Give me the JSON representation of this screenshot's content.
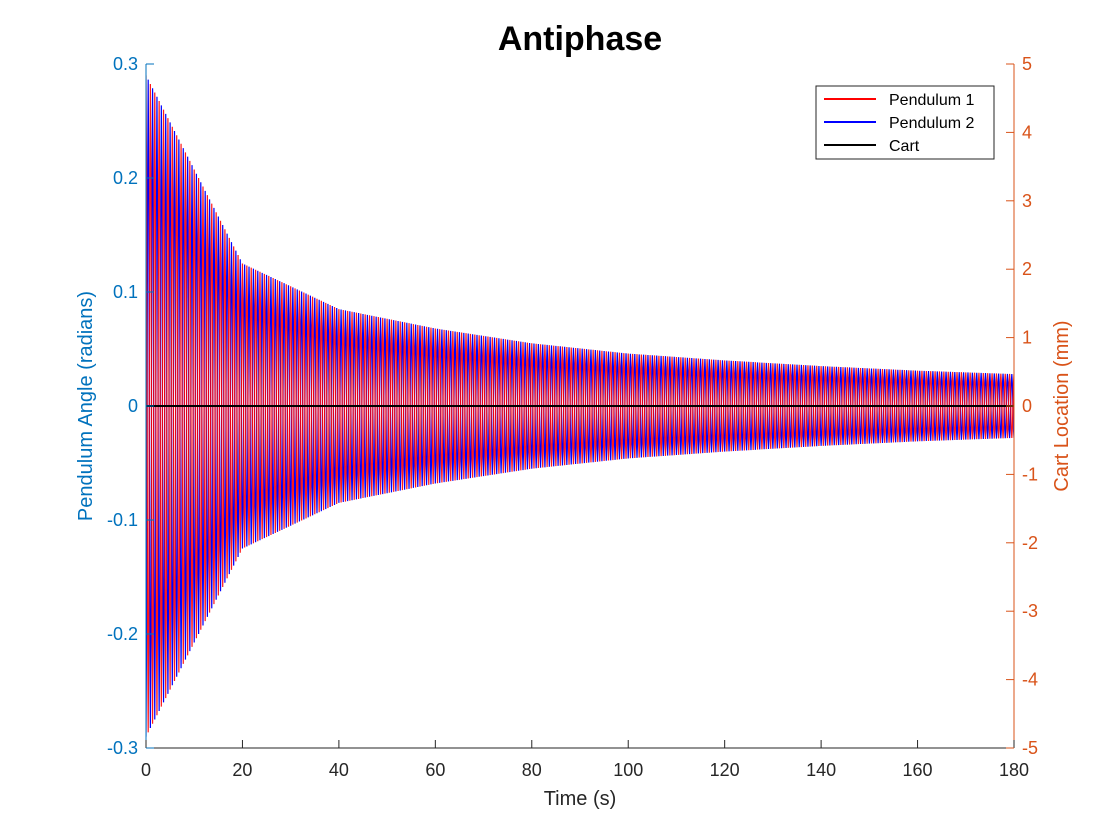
{
  "chart_data": {
    "type": "line",
    "title": "Antiphase",
    "xlabel": "Time (s)",
    "ylabel_left": "Pendulum Angle (radians)",
    "ylabel_right": "Cart Location (mm)",
    "xlim": [
      0,
      180
    ],
    "ylim_left": [
      -0.3,
      0.3
    ],
    "ylim_right": [
      -5,
      5
    ],
    "x_ticks": [
      0,
      20,
      40,
      60,
      80,
      100,
      120,
      140,
      160,
      180
    ],
    "y_left_ticks": [
      -0.3,
      -0.2,
      -0.1,
      0,
      0.1,
      0.2,
      0.3
    ],
    "y_right_ticks": [
      -5,
      -4,
      -3,
      -2,
      -1,
      0,
      1,
      2,
      3,
      4,
      5
    ],
    "grid": false,
    "legend_position": "top-right",
    "colors": {
      "left_axis": "#0072BD",
      "right_axis": "#D95319",
      "pendulum1": "#FF0000",
      "pendulum2": "#0000FF",
      "cart": "#000000"
    },
    "series": [
      {
        "name": "Pendulum 1",
        "axis": "left",
        "color": "#FF0000",
        "shape": "damped oscillation, antiphase with Pendulum 2",
        "envelope": [
          {
            "t": 0,
            "a": 0.29
          },
          {
            "t": 20,
            "a": 0.125
          },
          {
            "t": 40,
            "a": 0.085
          },
          {
            "t": 60,
            "a": 0.068
          },
          {
            "t": 80,
            "a": 0.055
          },
          {
            "t": 100,
            "a": 0.046
          },
          {
            "t": 120,
            "a": 0.04
          },
          {
            "t": 140,
            "a": 0.035
          },
          {
            "t": 160,
            "a": 0.031
          },
          {
            "t": 180,
            "a": 0.028
          }
        ]
      },
      {
        "name": "Pendulum 2",
        "axis": "left",
        "color": "#0000FF",
        "shape": "damped oscillation, antiphase with Pendulum 1",
        "envelope": [
          {
            "t": 0,
            "a": 0.29
          },
          {
            "t": 20,
            "a": 0.125
          },
          {
            "t": 40,
            "a": 0.085
          },
          {
            "t": 60,
            "a": 0.068
          },
          {
            "t": 80,
            "a": 0.055
          },
          {
            "t": 100,
            "a": 0.046
          },
          {
            "t": 120,
            "a": 0.04
          },
          {
            "t": 140,
            "a": 0.035
          },
          {
            "t": 160,
            "a": 0.031
          },
          {
            "t": 180,
            "a": 0.028
          }
        ]
      },
      {
        "name": "Cart",
        "axis": "right",
        "color": "#000000",
        "x": [
          0,
          180
        ],
        "values": [
          0,
          0
        ]
      }
    ]
  }
}
